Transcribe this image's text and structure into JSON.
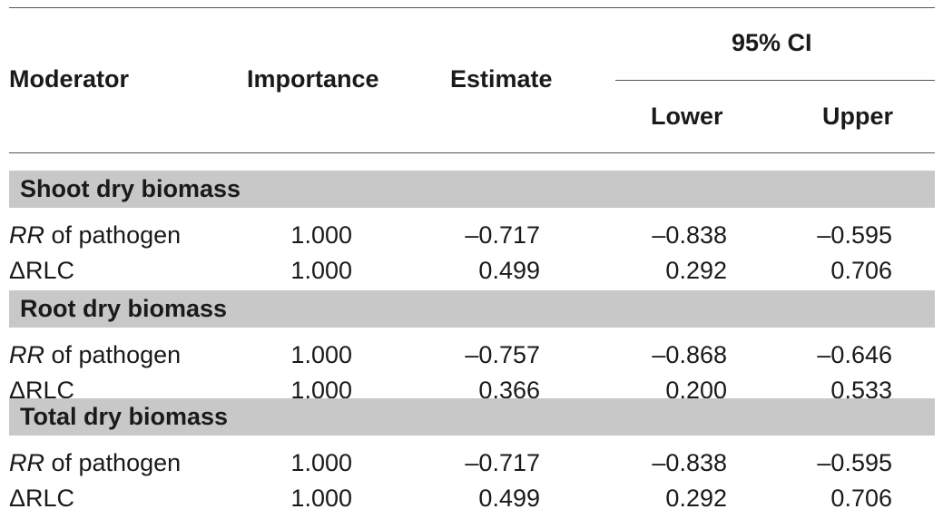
{
  "table": {
    "headers": {
      "moderator": "Moderator",
      "importance": "Importance",
      "estimate": "Estimate",
      "ci_group": "95% CI",
      "lower": "Lower",
      "upper": "Upper"
    },
    "sections": [
      {
        "title": "Shoot dry biomass",
        "rows": [
          {
            "mod_italic": "RR",
            "mod_rest": " of pathogen",
            "importance": "1.000",
            "estimate": "–0.717",
            "lower": "–0.838",
            "upper": "–0.595"
          },
          {
            "mod_italic": "",
            "mod_rest": "ΔRLC",
            "importance": "1.000",
            "estimate": "0.499",
            "lower": "0.292",
            "upper": "0.706"
          }
        ]
      },
      {
        "title": "Root dry biomass",
        "rows": [
          {
            "mod_italic": "RR",
            "mod_rest": " of pathogen",
            "importance": "1.000",
            "estimate": "–0.757",
            "lower": "–0.868",
            "upper": "–0.646"
          },
          {
            "mod_italic": "",
            "mod_rest": "ΔRLC",
            "importance": "1.000",
            "estimate": "0.366",
            "lower": "0.200",
            "upper": "0.533"
          }
        ]
      },
      {
        "title": "Total dry biomass",
        "rows": [
          {
            "mod_italic": "RR",
            "mod_rest": " of pathogen",
            "importance": "1.000",
            "estimate": "–0.717",
            "lower": "–0.838",
            "upper": "–0.595"
          },
          {
            "mod_italic": "",
            "mod_rest": "ΔRLC",
            "importance": "1.000",
            "estimate": "0.499",
            "lower": "0.292",
            "upper": "0.706"
          }
        ]
      }
    ]
  }
}
